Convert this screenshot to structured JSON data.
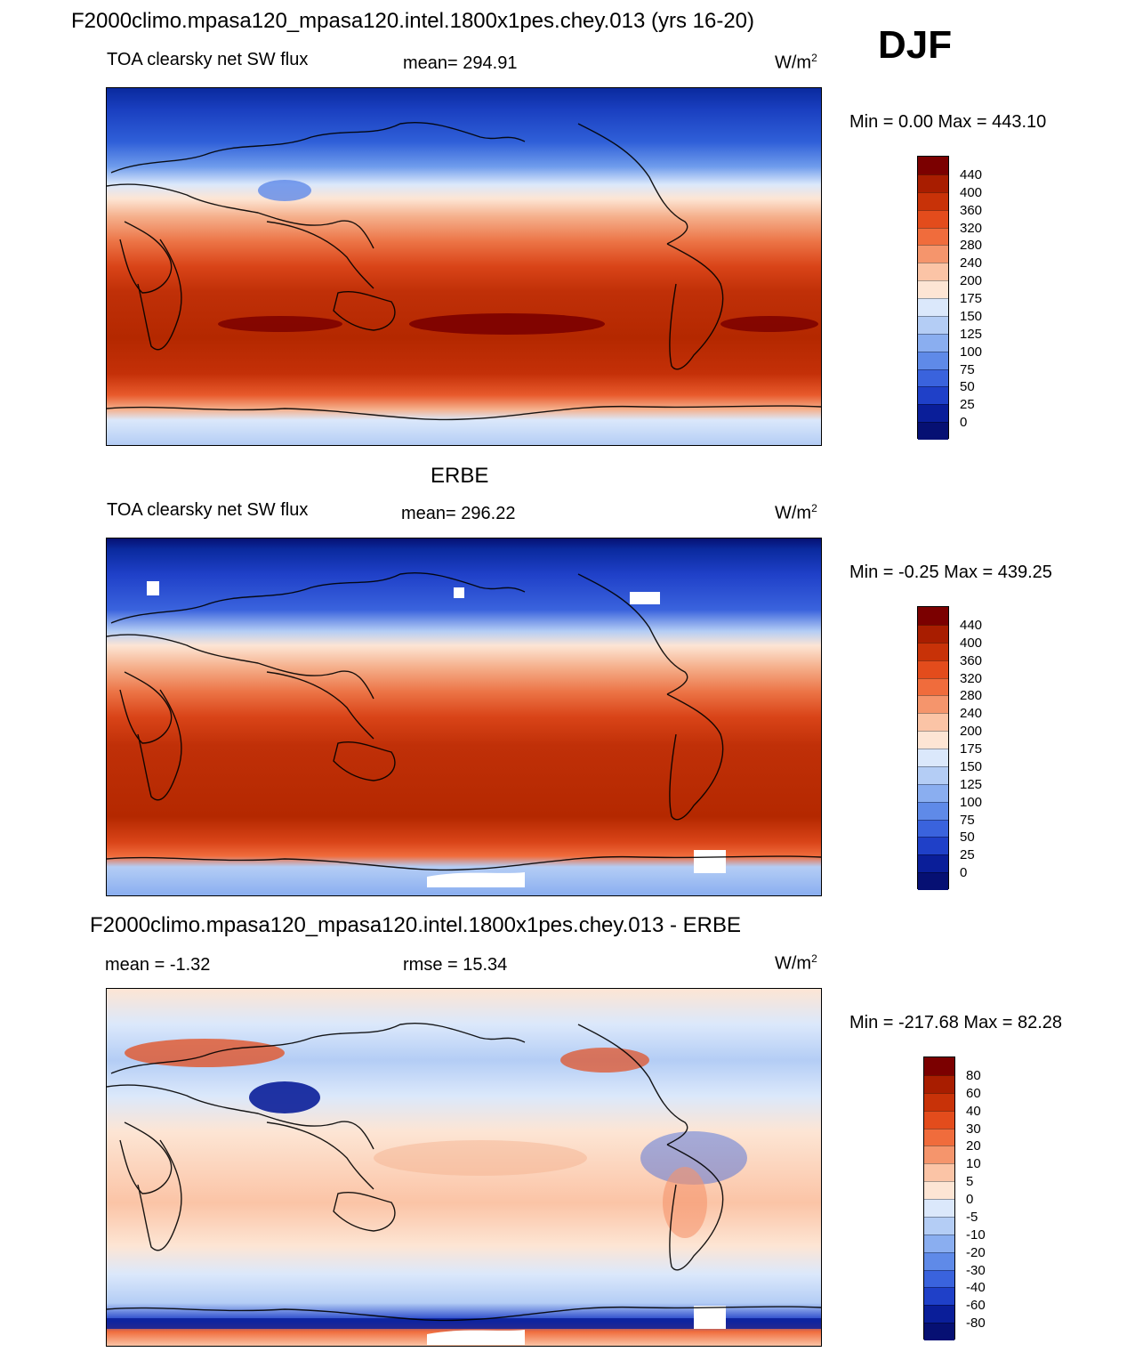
{
  "main_title": "F2000climo.mpasa120_mpasa120.intel.1800x1pes.chey.013 (yrs 16-20)",
  "season": "DJF",
  "panels": [
    {
      "id": "model",
      "title": "",
      "left_label": "TOA clearsky net SW flux",
      "center_label": "mean= 294.91",
      "units": "W/m",
      "units_sup": "2",
      "minmax": "Min =   0.00 Max = 443.10",
      "colorbar": {
        "labels": [
          "440",
          "400",
          "360",
          "320",
          "280",
          "240",
          "200",
          "175",
          "150",
          "125",
          "100",
          "75",
          "50",
          "25",
          "0"
        ],
        "colors": [
          "#7b0000",
          "#a81d00",
          "#c83208",
          "#e34c1c",
          "#f06c3c",
          "#f5956c",
          "#fbc4a6",
          "#fde5d4",
          "#dbe8fb",
          "#b4cdf5",
          "#8aaef0",
          "#5f8ae8",
          "#3a63dd",
          "#1f40c8",
          "#0a1e99",
          "#061073"
        ]
      }
    },
    {
      "id": "obs",
      "title": "ERBE",
      "left_label": "TOA clearsky net SW flux",
      "center_label": "mean= 296.22",
      "units": "W/m",
      "units_sup": "2",
      "minmax": "Min =  -0.25 Max = 439.25",
      "colorbar": {
        "labels": [
          "440",
          "400",
          "360",
          "320",
          "280",
          "240",
          "200",
          "175",
          "150",
          "125",
          "100",
          "75",
          "50",
          "25",
          "0"
        ],
        "colors": [
          "#7b0000",
          "#a81d00",
          "#c83208",
          "#e34c1c",
          "#f06c3c",
          "#f5956c",
          "#fbc4a6",
          "#fde5d4",
          "#dbe8fb",
          "#b4cdf5",
          "#8aaef0",
          "#5f8ae8",
          "#3a63dd",
          "#1f40c8",
          "#0a1e99",
          "#061073"
        ]
      }
    },
    {
      "id": "diff",
      "title": "F2000climo.mpasa120_mpasa120.intel.1800x1pes.chey.013 - ERBE",
      "left_label": "mean =  -1.32",
      "center_label": "rmse =  15.34",
      "units": "W/m",
      "units_sup": "2",
      "minmax": "Min = -217.68 Max =  82.28",
      "colorbar": {
        "labels": [
          "80",
          "60",
          "40",
          "30",
          "20",
          "10",
          "5",
          "0",
          "-5",
          "-10",
          "-20",
          "-30",
          "-40",
          "-60",
          "-80"
        ],
        "colors": [
          "#7b0000",
          "#a81d00",
          "#c83208",
          "#e34c1c",
          "#f06c3c",
          "#f5956c",
          "#fbc4a6",
          "#fde5d4",
          "#dbe8fb",
          "#b4cdf5",
          "#8aaef0",
          "#5f8ae8",
          "#3a63dd",
          "#1f40c8",
          "#0a1e99",
          "#061073"
        ]
      }
    }
  ]
}
